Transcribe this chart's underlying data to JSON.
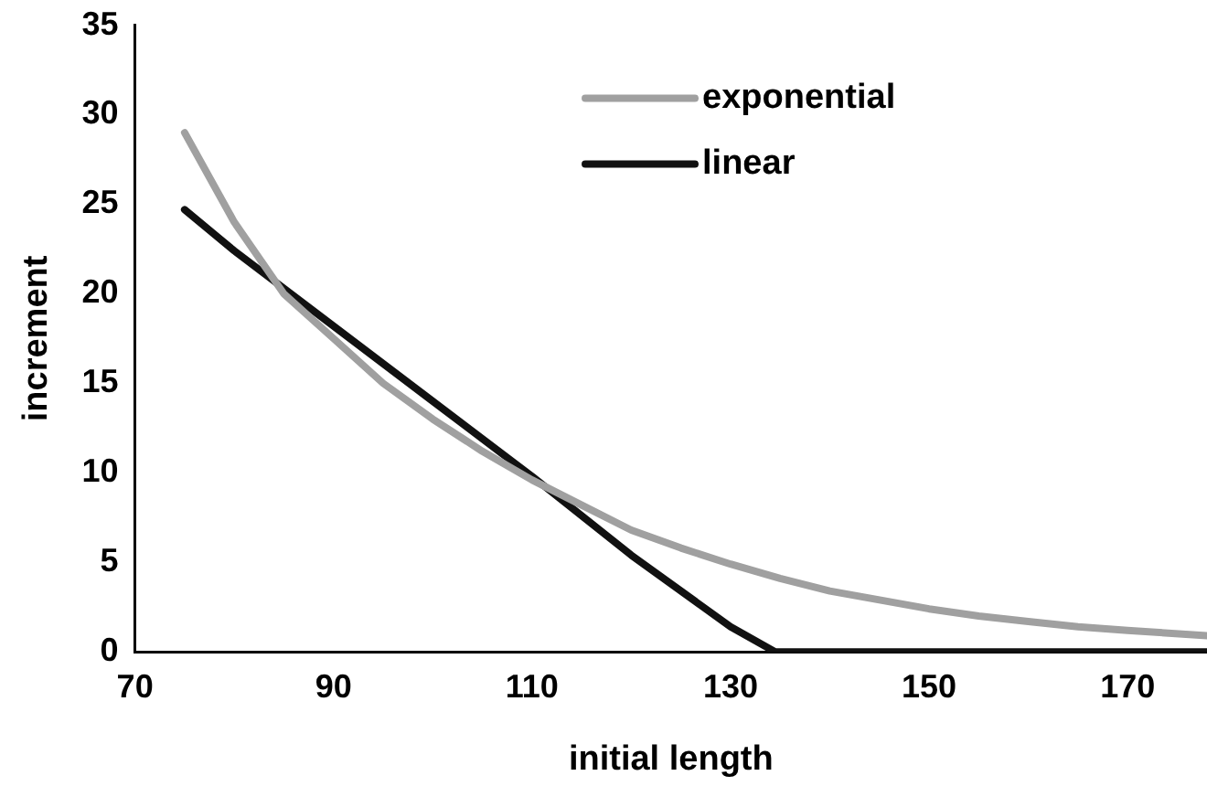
{
  "chart_data": {
    "type": "line",
    "xlabel": "initial length",
    "ylabel": "increment",
    "series": [
      {
        "name": "exponential",
        "color": "#a0a0a0",
        "x": [
          75,
          80,
          85,
          90,
          95,
          100,
          105,
          110,
          115,
          120,
          125,
          130,
          135,
          140,
          145,
          150,
          155,
          160,
          165,
          170,
          178
        ],
        "values": [
          29,
          24,
          20,
          17.5,
          15,
          13,
          11.2,
          9.6,
          8.2,
          6.8,
          5.8,
          4.9,
          4.1,
          3.4,
          2.9,
          2.4,
          2,
          1.7,
          1.4,
          1.2,
          0.9
        ]
      },
      {
        "name": "linear",
        "color": "#111111",
        "x": [
          75,
          80,
          90,
          100,
          110,
          120,
          130,
          134.5,
          178
        ],
        "values": [
          24.7,
          22.4,
          18.2,
          14,
          9.8,
          5.4,
          1.4,
          0,
          0
        ]
      }
    ],
    "xlim": [
      70,
      178
    ],
    "xticks": [
      70,
      90,
      110,
      130,
      150,
      170
    ],
    "ylim": [
      0,
      35
    ],
    "yticks": [
      0,
      5,
      10,
      15,
      20,
      25,
      30,
      35
    ],
    "grid": false,
    "legend": "top right",
    "marker": "none",
    "line_style": "solid"
  }
}
